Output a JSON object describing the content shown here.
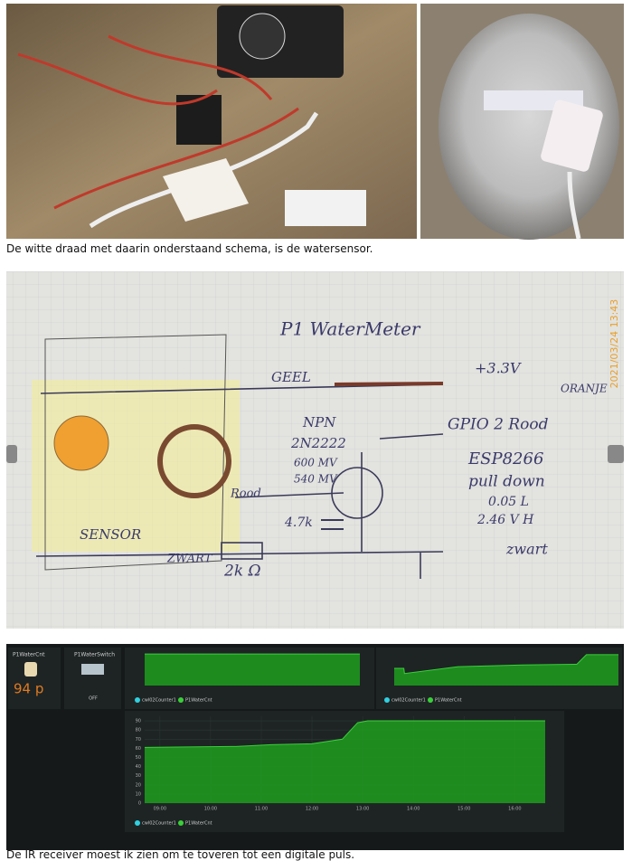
{
  "caption_top": "De witte draad met daarin onderstaand schema, is de watersensor.",
  "caption_bottom": "De IR receiver moest ik zien om te toveren tot een digitale puls.",
  "schematic": {
    "title": "P1 WaterMeter",
    "geel": "GEEL",
    "v33": "+3.3V",
    "oranje": "ORANJE",
    "npn": "NPN",
    "part": "2N2222",
    "mv600": "600 MV",
    "mv540": "540 MV",
    "gpio": "GPIO 2 Rood",
    "esp": "ESP8266",
    "pulldown": "pull down",
    "low": "0.05 L",
    "high": "2.46 V H",
    "rood": "Rood",
    "cap": "4.7k",
    "sensor": "SENSOR",
    "zwart": "ZWART",
    "res": "2k Ω",
    "zwart2": "zwart",
    "date": "2021/03/24 13:43"
  },
  "dashboard": {
    "widgets": [
      {
        "title": "P1WaterCnt",
        "value": "94 p"
      },
      {
        "title": "P1WaterSwitch",
        "value": "OFF"
      }
    ],
    "charts": [
      {
        "type": "area",
        "color": "#1e9e1e",
        "x": [
          0,
          1,
          2,
          3
        ],
        "values": [
          92,
          92,
          92,
          92
        ],
        "xlim": [
          0,
          3
        ],
        "ylim": [
          0,
          95
        ],
        "legend": [
          "cwl02Counter1",
          "P1WaterCnt"
        ]
      },
      {
        "type": "area",
        "color": "#1e9e1e",
        "x": [
          0,
          0.3,
          0.32,
          2,
          4,
          5.7,
          6,
          7
        ],
        "values": [
          50,
          50,
          35,
          55,
          60,
          62,
          90,
          90
        ],
        "xlim": [
          0,
          7
        ],
        "ylim": [
          0,
          95
        ],
        "legend": [
          "cwl02Counter1",
          "P1WaterCnt"
        ]
      },
      {
        "type": "area",
        "color": "#1e9e1e",
        "x": [
          8.7,
          10.5,
          11.2,
          12.0,
          12.6,
          12.9,
          13.1,
          16.6
        ],
        "values": [
          61,
          62,
          64,
          65,
          70,
          88,
          90,
          90
        ],
        "xlim": [
          8.7,
          16.6
        ],
        "ylim": [
          0,
          95
        ],
        "yticks": [
          0,
          10,
          20,
          30,
          40,
          50,
          60,
          70,
          80,
          90
        ],
        "xticks": [
          {
            "value": 9,
            "label": "09:00"
          },
          {
            "value": 10,
            "label": "10:00"
          },
          {
            "value": 11,
            "label": "11:00"
          },
          {
            "value": 12,
            "label": "12:00"
          },
          {
            "value": 13,
            "label": "13:00"
          },
          {
            "value": 14,
            "label": "14:00"
          },
          {
            "value": 15,
            "label": "15:00"
          },
          {
            "value": 16,
            "label": "16:00"
          }
        ],
        "legend": [
          "cwl02Counter1",
          "P1WaterCnt"
        ]
      }
    ]
  }
}
